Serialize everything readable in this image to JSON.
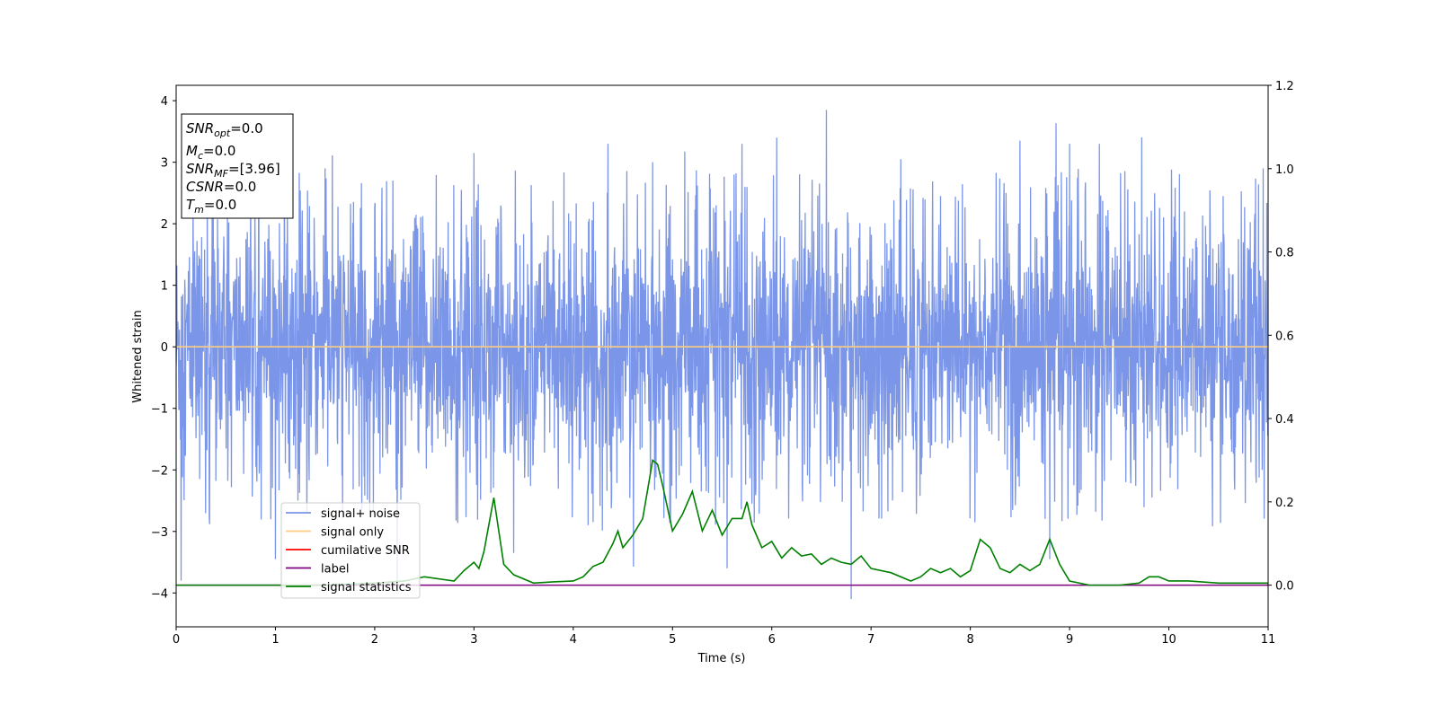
{
  "chart_data": {
    "type": "line",
    "xlabel": "Time (s)",
    "ylabel": "Whitened strain",
    "xlim": [
      0,
      11
    ],
    "ylim_left": [
      -4.55,
      4.25
    ],
    "ylim_right": [
      -0.1,
      1.2
    ],
    "x_ticks": [
      "0",
      "1",
      "2",
      "3",
      "4",
      "5",
      "6",
      "7",
      "8",
      "9",
      "10",
      "11"
    ],
    "y_ticks_left": [
      "−4",
      "−3",
      "−2",
      "−1",
      "0",
      "1",
      "2",
      "3",
      "4"
    ],
    "y_ticks_right": [
      "0.0",
      "0.2",
      "0.4",
      "0.6",
      "0.8",
      "1.0",
      "1.2"
    ],
    "info_box": [
      {
        "base": "SNR",
        "sub": "opt",
        "rest": "=0.0"
      },
      {
        "base": "M",
        "sub": "c",
        "rest": "=0.0"
      },
      {
        "base": "SNR",
        "sub": "MF",
        "rest": "=[3.96]"
      },
      {
        "base": "CSNR",
        "sub": "",
        "rest": "=0.0"
      },
      {
        "base": "T",
        "sub": "m",
        "rest": "=0.0"
      }
    ],
    "legend": {
      "placement": "lower-left",
      "entries": [
        {
          "label": "signal+ noise",
          "color": "#7b96e8"
        },
        {
          "label": "signal only",
          "color": "#ffcc80"
        },
        {
          "label": "cumilative SNR",
          "color": "#ff0000"
        },
        {
          "label": "label",
          "color": "#800080"
        },
        {
          "label": "signal statistics",
          "color": "#008000"
        }
      ]
    },
    "series": [
      {
        "name": "signal+ noise",
        "axis": "left",
        "color": "#7b96e8",
        "kind": "noise",
        "envelope": [
          -2.6,
          2.6
        ],
        "peaks": [
          {
            "x": 0.05,
            "y": -3.8
          },
          {
            "x": 1.0,
            "y": -3.45
          },
          {
            "x": 1.5,
            "y": 2.9
          },
          {
            "x": 3.0,
            "y": 3.15
          },
          {
            "x": 3.4,
            "y": -3.35
          },
          {
            "x": 4.35,
            "y": 3.3
          },
          {
            "x": 4.8,
            "y": 3.0
          },
          {
            "x": 5.7,
            "y": 3.3
          },
          {
            "x": 6.05,
            "y": 3.4
          },
          {
            "x": 6.55,
            "y": 3.85
          },
          {
            "x": 6.8,
            "y": -4.15
          },
          {
            "x": 7.3,
            "y": 3.05
          },
          {
            "x": 8.5,
            "y": 3.35
          },
          {
            "x": 9.0,
            "y": 3.3
          },
          {
            "x": 9.3,
            "y": 3.3
          },
          {
            "x": 10.95,
            "y": 2.9
          },
          {
            "x": 5.55,
            "y": -3.6
          },
          {
            "x": 8.8,
            "y": -3.45
          }
        ]
      },
      {
        "name": "signal only",
        "axis": "left",
        "color": "#ffcc80",
        "x": [
          0,
          11
        ],
        "y": [
          0,
          0
        ]
      },
      {
        "name": "label",
        "axis": "right",
        "color": "#800080",
        "x": [
          0,
          11
        ],
        "y": [
          0,
          0
        ]
      },
      {
        "name": "signal statistics",
        "axis": "right",
        "color": "#008000",
        "x": [
          0,
          0.5,
          1.0,
          1.5,
          2.0,
          2.3,
          2.5,
          2.8,
          2.9,
          3.0,
          3.05,
          3.1,
          3.2,
          3.3,
          3.4,
          3.6,
          3.8,
          4.0,
          4.1,
          4.2,
          4.3,
          4.4,
          4.45,
          4.5,
          4.6,
          4.7,
          4.8,
          4.85,
          4.9,
          5.0,
          5.1,
          5.2,
          5.3,
          5.4,
          5.5,
          5.6,
          5.7,
          5.75,
          5.8,
          5.9,
          6.0,
          6.1,
          6.2,
          6.3,
          6.4,
          6.5,
          6.6,
          6.7,
          6.8,
          6.9,
          7.0,
          7.2,
          7.4,
          7.5,
          7.6,
          7.7,
          7.8,
          7.9,
          8.0,
          8.1,
          8.2,
          8.3,
          8.4,
          8.5,
          8.6,
          8.7,
          8.8,
          8.9,
          9.0,
          9.2,
          9.5,
          9.7,
          9.8,
          9.9,
          10.0,
          10.2,
          10.5,
          10.8,
          11.0
        ],
        "y": [
          0.0,
          0.0,
          0.0,
          0.0,
          0.005,
          0.01,
          0.02,
          0.01,
          0.035,
          0.055,
          0.04,
          0.08,
          0.21,
          0.05,
          0.025,
          0.005,
          0.008,
          0.01,
          0.02,
          0.045,
          0.055,
          0.1,
          0.13,
          0.09,
          0.12,
          0.16,
          0.3,
          0.29,
          0.24,
          0.13,
          0.17,
          0.225,
          0.13,
          0.18,
          0.12,
          0.16,
          0.16,
          0.2,
          0.145,
          0.09,
          0.105,
          0.065,
          0.09,
          0.07,
          0.075,
          0.05,
          0.065,
          0.055,
          0.05,
          0.07,
          0.04,
          0.03,
          0.01,
          0.02,
          0.04,
          0.03,
          0.04,
          0.02,
          0.035,
          0.11,
          0.09,
          0.04,
          0.03,
          0.05,
          0.035,
          0.05,
          0.11,
          0.05,
          0.01,
          0.0,
          0.0,
          0.005,
          0.02,
          0.02,
          0.01,
          0.01,
          0.005,
          0.005,
          0.005
        ]
      }
    ]
  }
}
